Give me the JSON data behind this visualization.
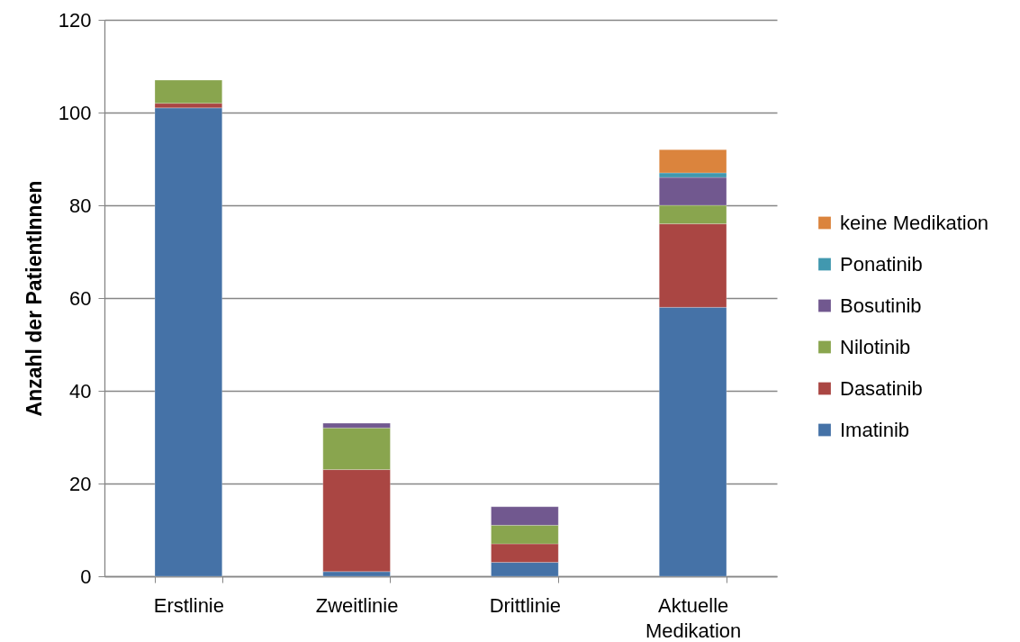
{
  "chart_data": {
    "type": "bar",
    "stacked": true,
    "categories": [
      "Erstlinie",
      "Zweitlinie",
      "Drittlinie",
      "Aktuelle Medikation"
    ],
    "ylabel": "Anzahl der PatientInnen",
    "ylim": [
      0,
      120
    ],
    "yticks": [
      0,
      20,
      40,
      60,
      80,
      100,
      120
    ],
    "grid": "y",
    "legend": "right",
    "series": [
      {
        "name": "Imatinib",
        "color": "#4572a7",
        "values": [
          101,
          1,
          3,
          58
        ]
      },
      {
        "name": "Dasatinib",
        "color": "#aa4643",
        "values": [
          1,
          22,
          4,
          18
        ]
      },
      {
        "name": "Nilotinib",
        "color": "#89a54e",
        "values": [
          5,
          9,
          4,
          4
        ]
      },
      {
        "name": "Bosutinib",
        "color": "#71588f",
        "values": [
          0,
          1,
          4,
          6
        ]
      },
      {
        "name": "Ponatinib",
        "color": "#4198af",
        "values": [
          0,
          0,
          0,
          1
        ]
      },
      {
        "name": "keine Medikation",
        "color": "#db843d",
        "values": [
          0,
          0,
          0,
          5
        ]
      }
    ]
  }
}
